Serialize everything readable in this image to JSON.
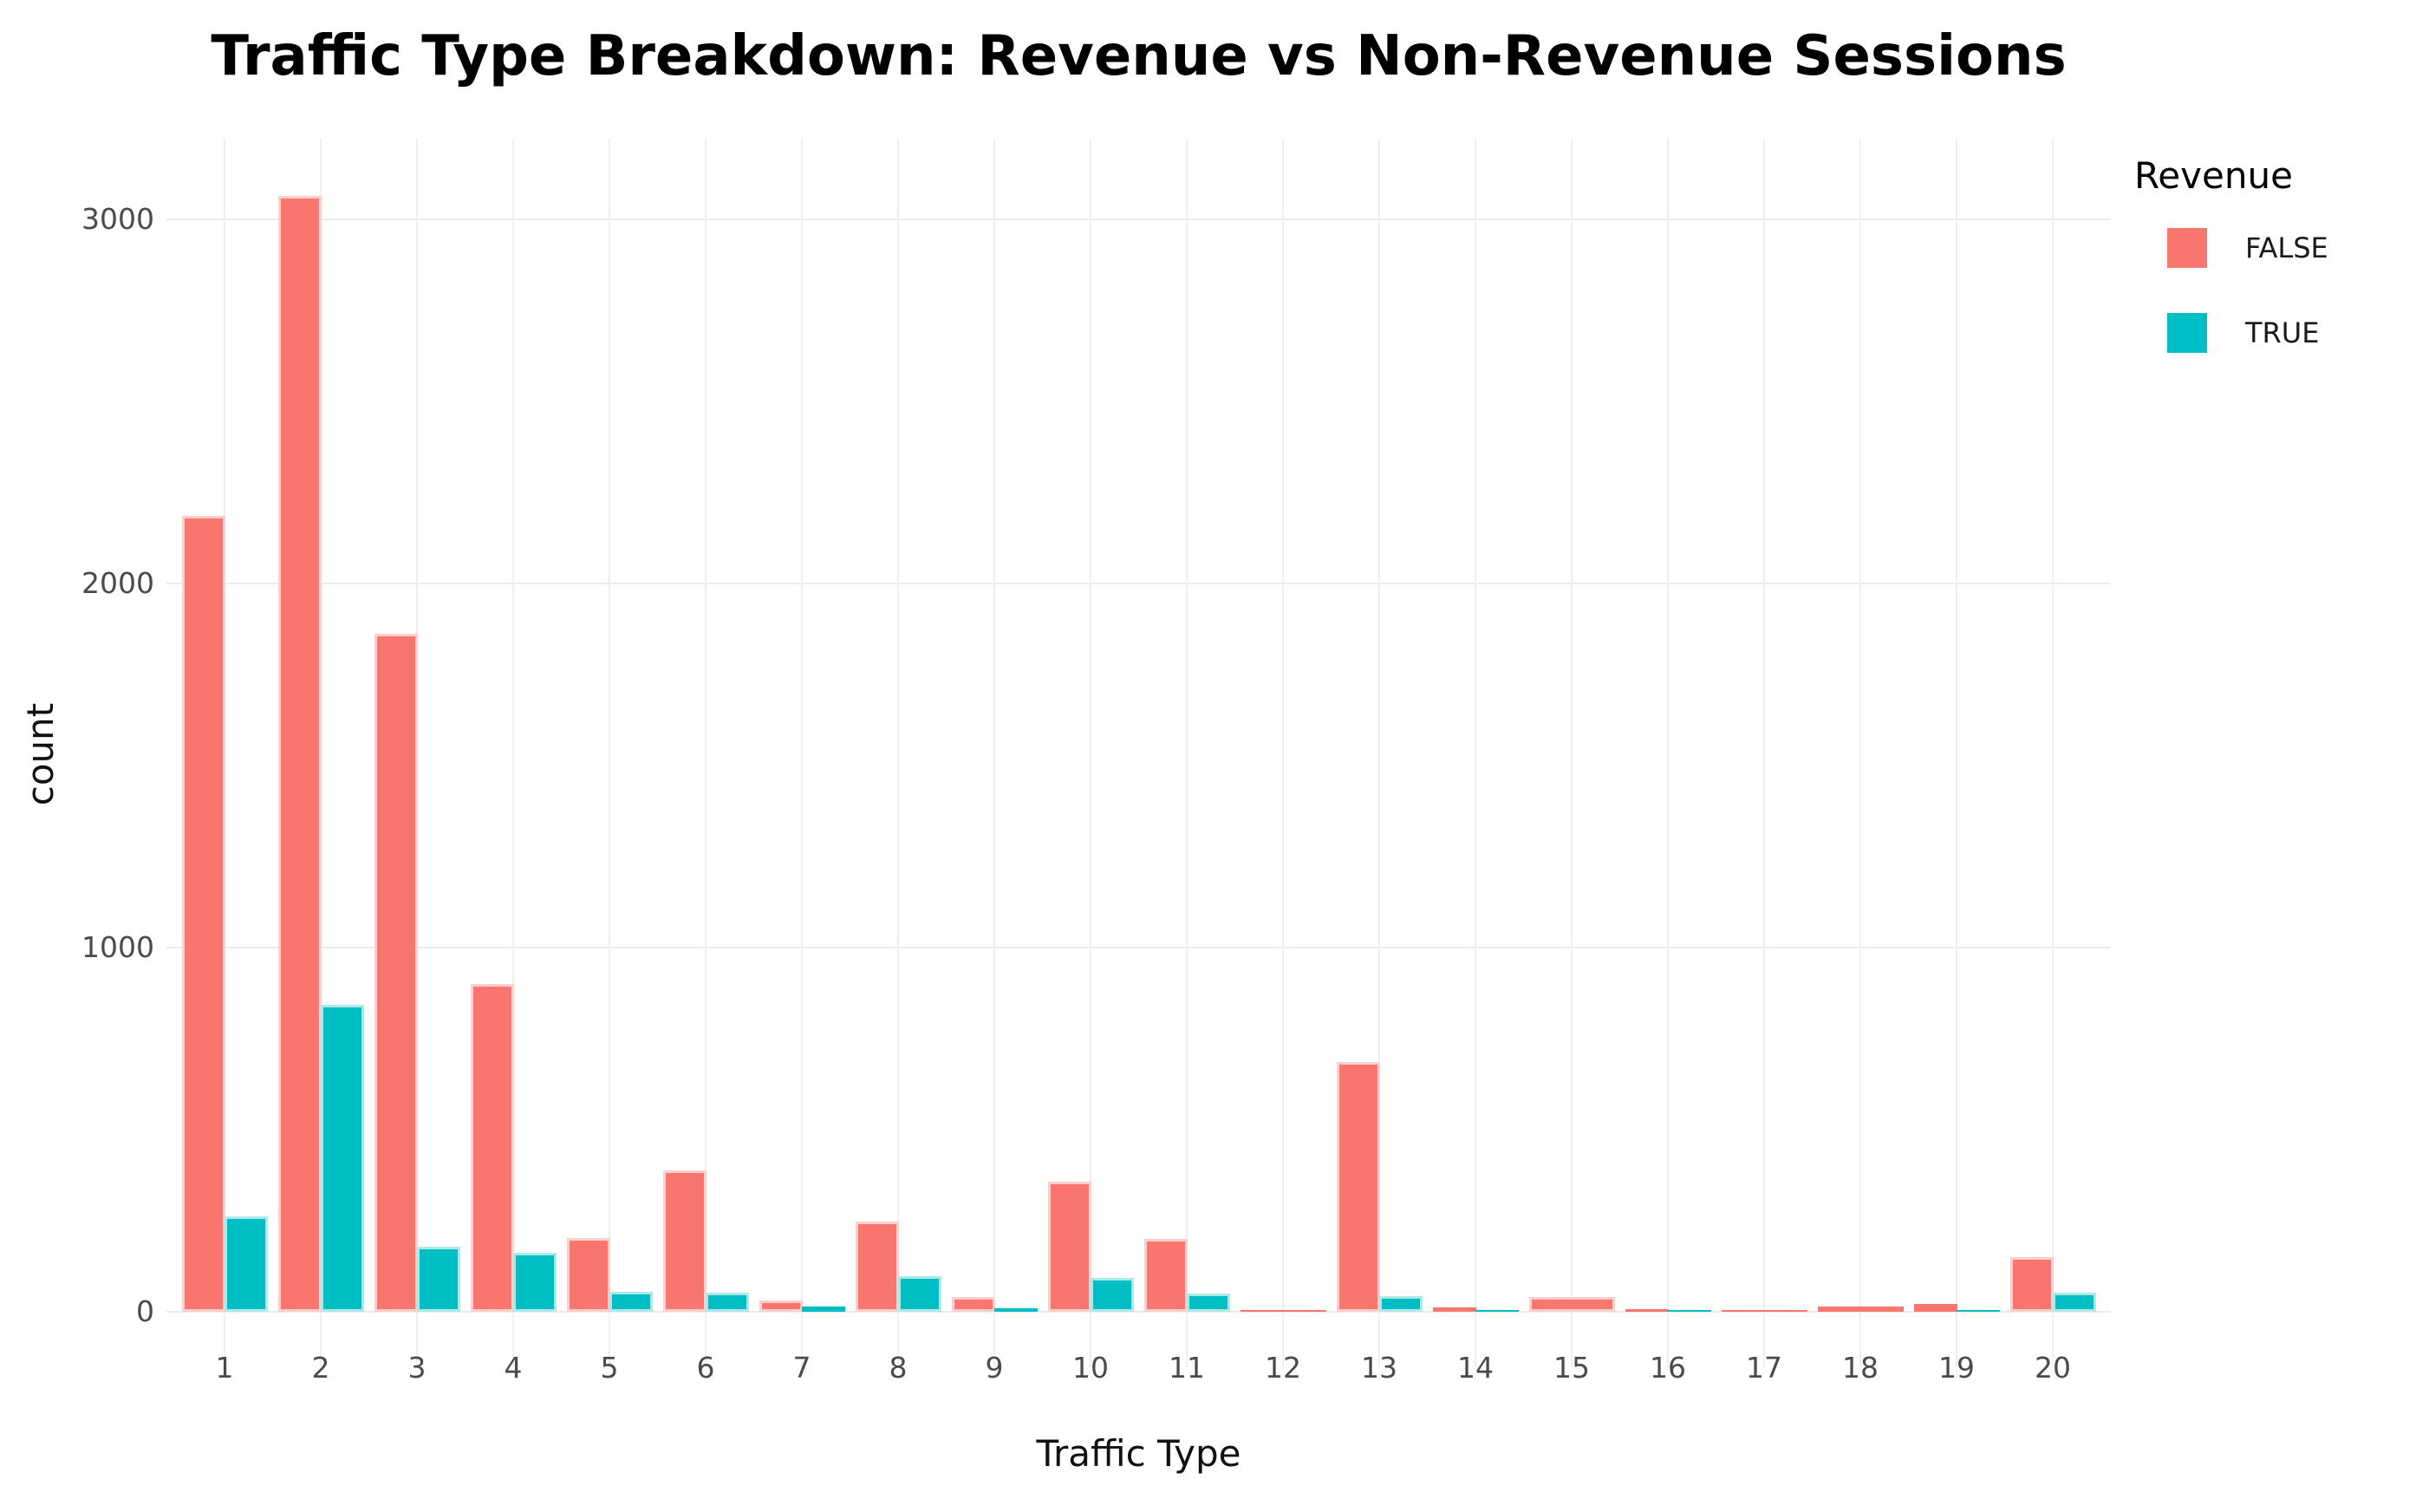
{
  "chart_data": {
    "type": "bar",
    "title": "Traffic Type Breakdown: Revenue vs Non-Revenue Sessions",
    "xlabel": "Traffic Type",
    "ylabel": "count",
    "legend": {
      "title": "Revenue",
      "position": "right",
      "entries": [
        {
          "label": "FALSE",
          "color": "#F8766D"
        },
        {
          "label": "TRUE",
          "color": "#00BFC4"
        }
      ]
    },
    "categories": [
      "1",
      "2",
      "3",
      "4",
      "5",
      "6",
      "7",
      "8",
      "9",
      "10",
      "11",
      "12",
      "13",
      "14",
      "15",
      "16",
      "17",
      "18",
      "19",
      "20"
    ],
    "series": [
      {
        "name": "FALSE",
        "color": "#F8766D",
        "edge_color": "#fbcfcb",
        "values": [
          2185,
          3065,
          1862,
          899,
          203,
          389,
          30,
          248,
          40,
          357,
          199,
          4,
          686,
          13,
          40,
          6,
          3,
          14,
          21,
          151
        ]
      },
      {
        "name": "TRUE",
        "color": "#00BFC4",
        "edge_color": "#aee8e9",
        "values": [
          262,
          842,
          178,
          163,
          55,
          53,
          15,
          97,
          10,
          92,
          51,
          0,
          44,
          4,
          0,
          5,
          0,
          0,
          4,
          52
        ]
      }
    ],
    "yticks": [
      0,
      1000,
      2000,
      3000
    ],
    "ylim": [
      0,
      3218
    ],
    "grid": "major gridlines only, light gray on white",
    "colors": {
      "background": "#FFFFFF",
      "grid": "#EBEBEB",
      "tick_label": "#4A4A4A",
      "axis_title": "#111111",
      "title": "#000000"
    }
  }
}
